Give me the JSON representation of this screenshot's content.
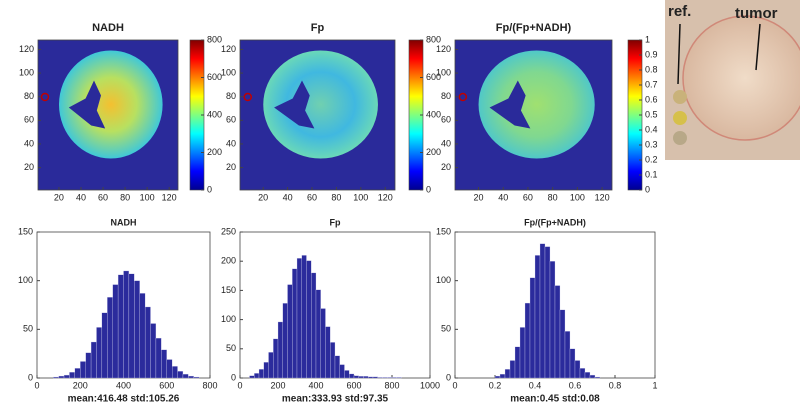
{
  "chart_data": [
    {
      "type": "heatmap",
      "title": "NADH",
      "xlim": [
        1,
        128
      ],
      "ylim": [
        1,
        128
      ],
      "xticks": [
        20,
        40,
        60,
        80,
        100,
        120
      ],
      "yticks": [
        20,
        40,
        60,
        80,
        100,
        120
      ],
      "clim": [
        0,
        800
      ],
      "cticks": [
        0,
        200,
        400,
        600,
        800
      ]
    },
    {
      "type": "heatmap",
      "title": "Fp",
      "xlim": [
        1,
        128
      ],
      "ylim": [
        1,
        128
      ],
      "xticks": [
        20,
        40,
        60,
        80,
        100,
        120
      ],
      "yticks": [
        20,
        40,
        60,
        80,
        100,
        120
      ],
      "clim": [
        0,
        800
      ],
      "cticks": [
        0,
        200,
        400,
        600,
        800
      ]
    },
    {
      "type": "heatmap",
      "title": "Fp/(Fp+NADH)",
      "xlim": [
        1,
        128
      ],
      "ylim": [
        1,
        128
      ],
      "xticks": [
        20,
        40,
        60,
        80,
        100,
        120
      ],
      "yticks": [
        20,
        40,
        60,
        80,
        100,
        120
      ],
      "clim": [
        0,
        1
      ],
      "cticks": [
        0,
        0.1,
        0.2,
        0.3,
        0.4,
        0.5,
        0.6,
        0.7,
        0.8,
        0.9,
        1
      ]
    },
    {
      "type": "histogram",
      "title": "NADH",
      "caption": "mean:416.48 std:105.26",
      "color": "#2b2b9c",
      "bins": [
        50,
        75,
        100,
        125,
        150,
        175,
        200,
        225,
        250,
        275,
        300,
        325,
        350,
        375,
        400,
        425,
        450,
        475,
        500,
        525,
        550,
        575,
        600,
        625,
        650,
        675,
        700,
        725,
        750,
        775,
        800
      ],
      "counts": [
        0,
        1,
        2,
        3,
        6,
        10,
        17,
        26,
        37,
        52,
        67,
        83,
        96,
        106,
        110,
        107,
        100,
        87,
        73,
        56,
        41,
        29,
        19,
        12,
        7,
        4,
        2,
        1,
        0,
        0
      ],
      "xlim": [
        0,
        800
      ],
      "xticks": [
        0,
        200,
        400,
        600,
        800
      ],
      "ylim": [
        0,
        150
      ],
      "yticks": [
        0,
        50,
        100,
        150
      ]
    },
    {
      "type": "histogram",
      "title": "Fp",
      "caption": "mean:333.93 std:97.35",
      "color": "#2b2b9c",
      "bins": [
        50,
        75,
        100,
        125,
        150,
        175,
        200,
        225,
        250,
        275,
        300,
        325,
        350,
        375,
        400,
        425,
        450,
        475,
        500,
        525,
        550,
        575,
        600,
        625,
        650,
        675,
        700,
        725,
        750,
        775,
        800,
        825,
        850,
        875,
        900,
        925,
        950,
        975,
        1000
      ],
      "counts": [
        4,
        8,
        15,
        27,
        44,
        67,
        96,
        128,
        160,
        187,
        205,
        210,
        201,
        180,
        151,
        119,
        88,
        61,
        38,
        23,
        13,
        7,
        4,
        3,
        3,
        2,
        2,
        1,
        1,
        1,
        1,
        1,
        0,
        0,
        0,
        0,
        0,
        0
      ],
      "xlim": [
        0,
        1000
      ],
      "xticks": [
        0,
        200,
        400,
        600,
        800,
        1000
      ],
      "ylim": [
        0,
        250
      ],
      "yticks": [
        0,
        50,
        100,
        150,
        200,
        250
      ]
    },
    {
      "type": "histogram",
      "title": "Fp/(Fp+NADH)",
      "caption": "mean:0.45 std:0.08",
      "color": "#2b2b9c",
      "bins": [
        0.2,
        0.225,
        0.25,
        0.275,
        0.3,
        0.325,
        0.35,
        0.375,
        0.4,
        0.425,
        0.45,
        0.475,
        0.5,
        0.525,
        0.55,
        0.575,
        0.6,
        0.625,
        0.65,
        0.675,
        0.7,
        0.725,
        0.75,
        0.775,
        0.8
      ],
      "counts": [
        2,
        4,
        9,
        18,
        32,
        52,
        77,
        103,
        126,
        138,
        135,
        120,
        95,
        70,
        48,
        30,
        18,
        10,
        6,
        3,
        1,
        0,
        0,
        0
      ],
      "xlim": [
        0,
        1
      ],
      "xticks": [
        0,
        0.2,
        0.4,
        0.6,
        0.8,
        1
      ],
      "ylim": [
        0,
        150
      ],
      "yticks": [
        0,
        50,
        100,
        150
      ]
    }
  ],
  "photo": {
    "labels": [
      "ref.",
      "tumor"
    ]
  }
}
